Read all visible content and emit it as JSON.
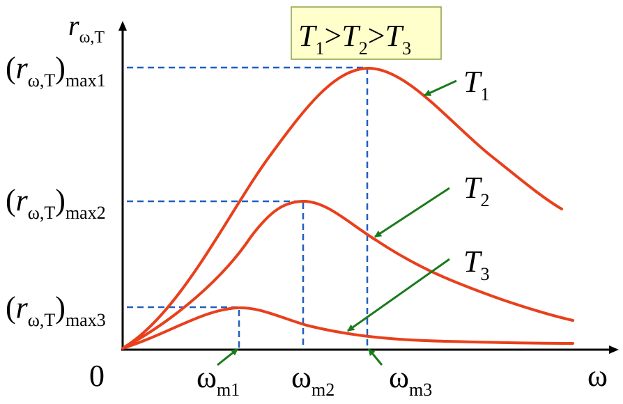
{
  "axes": {
    "y_label": [
      {
        "text": "r",
        "italic": true
      },
      {
        "sub": "ω,T"
      }
    ],
    "origin": [
      {
        "text": "0"
      }
    ],
    "x_label": [
      {
        "text": "ω"
      }
    ]
  },
  "legend_box": [
    {
      "text": "T",
      "italic": true
    },
    {
      "sub": "1"
    },
    {
      "text": ">"
    },
    {
      "text": "T",
      "italic": true
    },
    {
      "sub": "2"
    },
    {
      "text": ">"
    },
    {
      "text": "T",
      "italic": true
    },
    {
      "sub": "3"
    }
  ],
  "max_labels": [
    [
      {
        "text": "("
      },
      {
        "text": "r",
        "italic": true
      },
      {
        "sub": "ω,T"
      },
      {
        "text": ")"
      },
      {
        "sub": "max1"
      }
    ],
    [
      {
        "text": "("
      },
      {
        "text": "r",
        "italic": true
      },
      {
        "sub": "ω,T"
      },
      {
        "text": ")"
      },
      {
        "sub": "max2"
      }
    ],
    [
      {
        "text": "("
      },
      {
        "text": "r",
        "italic": true
      },
      {
        "sub": "ω,T"
      },
      {
        "text": ")"
      },
      {
        "sub": "max3"
      }
    ]
  ],
  "peak_labels": [
    [
      {
        "text": "ω"
      },
      {
        "sub": "m1"
      }
    ],
    [
      {
        "text": "ω"
      },
      {
        "sub": "m2"
      }
    ],
    [
      {
        "text": "ω"
      },
      {
        "sub": "m3"
      }
    ]
  ],
  "curve_labels": [
    [
      {
        "text": "T",
        "italic": true
      },
      {
        "sub": "1"
      }
    ],
    [
      {
        "text": "T",
        "italic": true
      },
      {
        "sub": "2"
      }
    ],
    [
      {
        "text": "T",
        "italic": true
      },
      {
        "sub": "3"
      }
    ]
  ]
}
